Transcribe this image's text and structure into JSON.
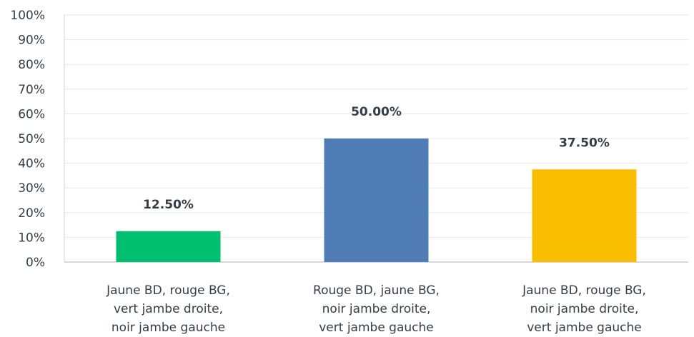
{
  "chart_data": {
    "type": "bar",
    "categories": [
      [
        "Jaune BD, rouge BG,",
        "vert jambe droite,",
        "noir jambe gauche"
      ],
      [
        "Rouge BD, jaune BG,",
        "noir jambe droite,",
        "vert jambe gauche"
      ],
      [
        "Jaune BD, rouge BG,",
        "noir jambe droite,",
        "vert jambe gauche"
      ]
    ],
    "values": [
      12.5,
      50.0,
      37.5
    ],
    "data_labels": [
      "12.50%",
      "50.00%",
      "37.50%"
    ],
    "colors": [
      "#00bf6f",
      "#507cb6",
      "#f9be00"
    ],
    "ylim": [
      0,
      100
    ],
    "yticks": [
      "0%",
      "10%",
      "20%",
      "30%",
      "40%",
      "50%",
      "60%",
      "70%",
      "80%",
      "90%",
      "100%"
    ],
    "grid": true,
    "legend": "none"
  }
}
